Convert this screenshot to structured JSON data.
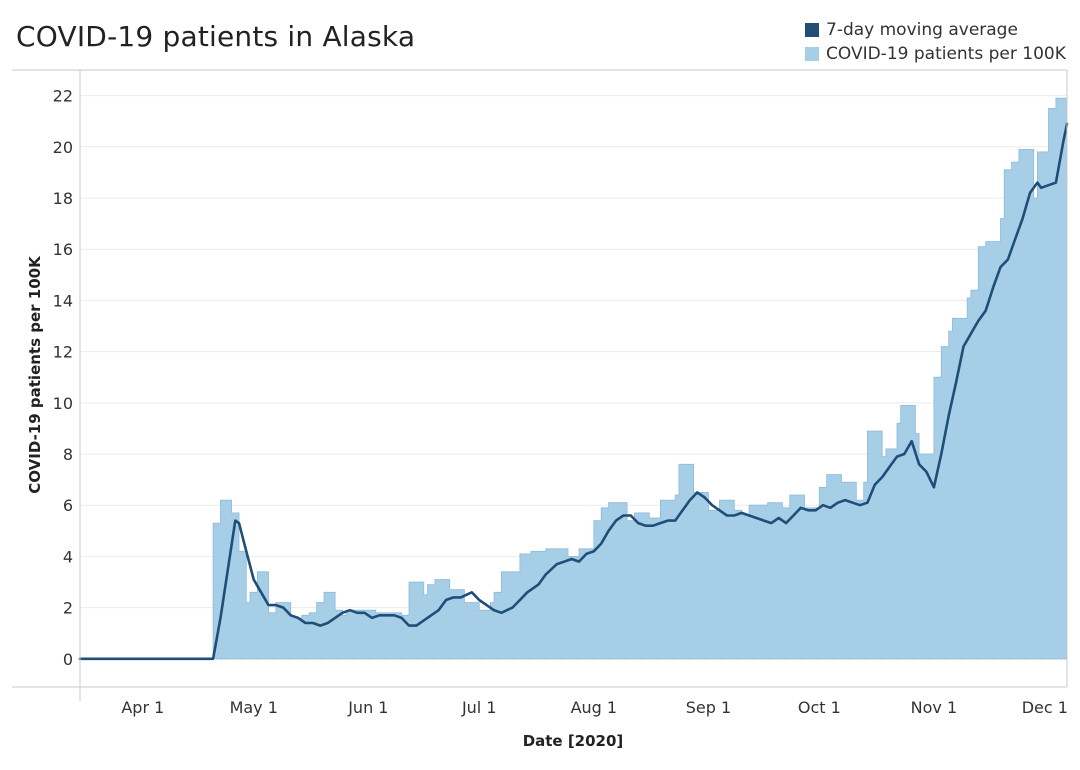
{
  "chart_data": {
    "type": "area",
    "title": "COVID-19 patients in Alaska",
    "xlabel": "Date [2020]",
    "ylabel": "COVID-19 patients per 100K",
    "x_range": [
      "2020-03-15",
      "2020-12-07"
    ],
    "ylim": [
      -1.1,
      23.0
    ],
    "y_ticks": [
      0,
      2,
      4,
      6,
      8,
      10,
      12,
      14,
      16,
      18,
      20,
      22
    ],
    "x_ticks": [
      {
        "date": "2020-04-01",
        "label": "Apr 1"
      },
      {
        "date": "2020-05-01",
        "label": "May 1"
      },
      {
        "date": "2020-06-01",
        "label": "Jun 1"
      },
      {
        "date": "2020-07-01",
        "label": "Jul 1"
      },
      {
        "date": "2020-08-01",
        "label": "Aug 1"
      },
      {
        "date": "2020-09-01",
        "label": "Sep 1"
      },
      {
        "date": "2020-10-01",
        "label": "Oct 1"
      },
      {
        "date": "2020-11-01",
        "label": "Nov 1"
      },
      {
        "date": "2020-12-01",
        "label": "Dec 1"
      }
    ],
    "grid": true,
    "legend_position": "top-right",
    "series": [
      {
        "name": "7-day moving average",
        "style": "line",
        "color": "#1f4e79",
        "points": [
          [
            "2020-03-15",
            0
          ],
          [
            "2020-04-19",
            0
          ],
          [
            "2020-04-20",
            0
          ],
          [
            "2020-04-22",
            1.6
          ],
          [
            "2020-04-24",
            3.5
          ],
          [
            "2020-04-26",
            5.4
          ],
          [
            "2020-04-27",
            5.3
          ],
          [
            "2020-04-29",
            4.2
          ],
          [
            "2020-05-01",
            3.1
          ],
          [
            "2020-05-03",
            2.6
          ],
          [
            "2020-05-05",
            2.1
          ],
          [
            "2020-05-07",
            2.1
          ],
          [
            "2020-05-09",
            2.0
          ],
          [
            "2020-05-11",
            1.7
          ],
          [
            "2020-05-13",
            1.6
          ],
          [
            "2020-05-15",
            1.4
          ],
          [
            "2020-05-17",
            1.4
          ],
          [
            "2020-05-19",
            1.3
          ],
          [
            "2020-05-21",
            1.4
          ],
          [
            "2020-05-23",
            1.6
          ],
          [
            "2020-05-25",
            1.8
          ],
          [
            "2020-05-27",
            1.9
          ],
          [
            "2020-05-29",
            1.8
          ],
          [
            "2020-05-31",
            1.8
          ],
          [
            "2020-06-02",
            1.6
          ],
          [
            "2020-06-04",
            1.7
          ],
          [
            "2020-06-06",
            1.7
          ],
          [
            "2020-06-08",
            1.7
          ],
          [
            "2020-06-10",
            1.6
          ],
          [
            "2020-06-12",
            1.3
          ],
          [
            "2020-06-14",
            1.3
          ],
          [
            "2020-06-16",
            1.5
          ],
          [
            "2020-06-18",
            1.7
          ],
          [
            "2020-06-20",
            1.9
          ],
          [
            "2020-06-22",
            2.3
          ],
          [
            "2020-06-24",
            2.4
          ],
          [
            "2020-06-26",
            2.4
          ],
          [
            "2020-06-29",
            2.6
          ],
          [
            "2020-07-01",
            2.3
          ],
          [
            "2020-07-03",
            2.1
          ],
          [
            "2020-07-05",
            1.9
          ],
          [
            "2020-07-07",
            1.8
          ],
          [
            "2020-07-10",
            2.0
          ],
          [
            "2020-07-12",
            2.3
          ],
          [
            "2020-07-14",
            2.6
          ],
          [
            "2020-07-17",
            2.9
          ],
          [
            "2020-07-19",
            3.3
          ],
          [
            "2020-07-22",
            3.7
          ],
          [
            "2020-07-24",
            3.8
          ],
          [
            "2020-07-26",
            3.9
          ],
          [
            "2020-07-28",
            3.8
          ],
          [
            "2020-07-30",
            4.1
          ],
          [
            "2020-08-01",
            4.2
          ],
          [
            "2020-08-03",
            4.5
          ],
          [
            "2020-08-05",
            5.0
          ],
          [
            "2020-08-07",
            5.4
          ],
          [
            "2020-08-09",
            5.6
          ],
          [
            "2020-08-11",
            5.6
          ],
          [
            "2020-08-13",
            5.3
          ],
          [
            "2020-08-15",
            5.2
          ],
          [
            "2020-08-17",
            5.2
          ],
          [
            "2020-08-19",
            5.3
          ],
          [
            "2020-08-21",
            5.4
          ],
          [
            "2020-08-23",
            5.4
          ],
          [
            "2020-08-25",
            5.8
          ],
          [
            "2020-08-27",
            6.2
          ],
          [
            "2020-08-29",
            6.5
          ],
          [
            "2020-08-31",
            6.3
          ],
          [
            "2020-09-02",
            6.0
          ],
          [
            "2020-09-04",
            5.8
          ],
          [
            "2020-09-06",
            5.6
          ],
          [
            "2020-09-08",
            5.6
          ],
          [
            "2020-09-10",
            5.7
          ],
          [
            "2020-09-12",
            5.6
          ],
          [
            "2020-09-14",
            5.5
          ],
          [
            "2020-09-16",
            5.4
          ],
          [
            "2020-09-18",
            5.3
          ],
          [
            "2020-09-20",
            5.5
          ],
          [
            "2020-09-22",
            5.3
          ],
          [
            "2020-09-24",
            5.6
          ],
          [
            "2020-09-26",
            5.9
          ],
          [
            "2020-09-28",
            5.8
          ],
          [
            "2020-09-30",
            5.8
          ],
          [
            "2020-10-02",
            6.0
          ],
          [
            "2020-10-04",
            5.9
          ],
          [
            "2020-10-06",
            6.1
          ],
          [
            "2020-10-08",
            6.2
          ],
          [
            "2020-10-10",
            6.1
          ],
          [
            "2020-10-12",
            6.0
          ],
          [
            "2020-10-14",
            6.1
          ],
          [
            "2020-10-16",
            6.8
          ],
          [
            "2020-10-18",
            7.1
          ],
          [
            "2020-10-20",
            7.5
          ],
          [
            "2020-10-22",
            7.9
          ],
          [
            "2020-10-24",
            8.0
          ],
          [
            "2020-10-26",
            8.5
          ],
          [
            "2020-10-28",
            7.6
          ],
          [
            "2020-10-30",
            7.3
          ],
          [
            "2020-11-01",
            6.7
          ],
          [
            "2020-11-03",
            8.0
          ],
          [
            "2020-11-05",
            9.5
          ],
          [
            "2020-11-07",
            10.8
          ],
          [
            "2020-11-09",
            12.2
          ],
          [
            "2020-11-11",
            12.7
          ],
          [
            "2020-11-13",
            13.2
          ],
          [
            "2020-11-15",
            13.6
          ],
          [
            "2020-11-17",
            14.5
          ],
          [
            "2020-11-19",
            15.3
          ],
          [
            "2020-11-21",
            15.6
          ],
          [
            "2020-11-23",
            16.4
          ],
          [
            "2020-11-25",
            17.2
          ],
          [
            "2020-11-27",
            18.2
          ],
          [
            "2020-11-29",
            18.6
          ],
          [
            "2020-11-30",
            18.4
          ],
          [
            "2020-12-02",
            18.5
          ],
          [
            "2020-12-04",
            18.6
          ],
          [
            "2020-12-05",
            19.4
          ],
          [
            "2020-12-06",
            20.2
          ],
          [
            "2020-12-07",
            20.9
          ]
        ]
      },
      {
        "name": "COVID-19 patients per 100K",
        "style": "area",
        "color": "#a6cee6",
        "points": [
          [
            "2020-03-15",
            0
          ],
          [
            "2020-04-19",
            0
          ],
          [
            "2020-04-20",
            5.3
          ],
          [
            "2020-04-22",
            6.2
          ],
          [
            "2020-04-25",
            5.7
          ],
          [
            "2020-04-27",
            4.2
          ],
          [
            "2020-04-29",
            2.2
          ],
          [
            "2020-04-30",
            2.6
          ],
          [
            "2020-05-02",
            3.4
          ],
          [
            "2020-05-05",
            1.8
          ],
          [
            "2020-05-07",
            2.2
          ],
          [
            "2020-05-11",
            1.6
          ],
          [
            "2020-05-14",
            1.7
          ],
          [
            "2020-05-16",
            1.8
          ],
          [
            "2020-05-18",
            2.2
          ],
          [
            "2020-05-20",
            2.6
          ],
          [
            "2020-05-23",
            1.9
          ],
          [
            "2020-05-25",
            1.7
          ],
          [
            "2020-05-26",
            1.9
          ],
          [
            "2020-06-03",
            1.8
          ],
          [
            "2020-06-10",
            1.7
          ],
          [
            "2020-06-12",
            3.0
          ],
          [
            "2020-06-16",
            2.5
          ],
          [
            "2020-06-17",
            2.9
          ],
          [
            "2020-06-19",
            3.1
          ],
          [
            "2020-06-23",
            2.7
          ],
          [
            "2020-06-27",
            2.2
          ],
          [
            "2020-07-01",
            1.9
          ],
          [
            "2020-07-04",
            2.2
          ],
          [
            "2020-07-05",
            2.6
          ],
          [
            "2020-07-07",
            3.4
          ],
          [
            "2020-07-12",
            4.1
          ],
          [
            "2020-07-15",
            4.2
          ],
          [
            "2020-07-19",
            4.3
          ],
          [
            "2020-07-22",
            4.3
          ],
          [
            "2020-07-25",
            4.0
          ],
          [
            "2020-07-28",
            4.3
          ],
          [
            "2020-08-01",
            5.4
          ],
          [
            "2020-08-03",
            5.9
          ],
          [
            "2020-08-05",
            6.1
          ],
          [
            "2020-08-10",
            5.4
          ],
          [
            "2020-08-12",
            5.7
          ],
          [
            "2020-08-16",
            5.5
          ],
          [
            "2020-08-19",
            6.2
          ],
          [
            "2020-08-23",
            6.4
          ],
          [
            "2020-08-24",
            7.6
          ],
          [
            "2020-08-28",
            6.5
          ],
          [
            "2020-09-01",
            5.8
          ],
          [
            "2020-09-04",
            6.2
          ],
          [
            "2020-09-08",
            5.8
          ],
          [
            "2020-09-10",
            5.6
          ],
          [
            "2020-09-12",
            6.0
          ],
          [
            "2020-09-17",
            6.1
          ],
          [
            "2020-09-21",
            5.9
          ],
          [
            "2020-09-23",
            6.4
          ],
          [
            "2020-09-27",
            5.9
          ],
          [
            "2020-10-01",
            6.7
          ],
          [
            "2020-10-03",
            7.2
          ],
          [
            "2020-10-07",
            6.9
          ],
          [
            "2020-10-11",
            6.2
          ],
          [
            "2020-10-13",
            6.9
          ],
          [
            "2020-10-14",
            8.9
          ],
          [
            "2020-10-18",
            7.9
          ],
          [
            "2020-10-19",
            8.2
          ],
          [
            "2020-10-22",
            9.2
          ],
          [
            "2020-10-23",
            9.9
          ],
          [
            "2020-10-27",
            8.8
          ],
          [
            "2020-10-28",
            8.0
          ],
          [
            "2020-11-01",
            11.0
          ],
          [
            "2020-11-03",
            12.2
          ],
          [
            "2020-11-05",
            12.8
          ],
          [
            "2020-11-06",
            13.3
          ],
          [
            "2020-11-10",
            14.1
          ],
          [
            "2020-11-11",
            14.4
          ],
          [
            "2020-11-13",
            16.1
          ],
          [
            "2020-11-15",
            16.3
          ],
          [
            "2020-11-19",
            17.2
          ],
          [
            "2020-11-20",
            19.1
          ],
          [
            "2020-11-22",
            19.4
          ],
          [
            "2020-11-24",
            19.9
          ],
          [
            "2020-11-28",
            18.0
          ],
          [
            "2020-11-29",
            19.8
          ],
          [
            "2020-12-02",
            21.5
          ],
          [
            "2020-12-04",
            21.9
          ],
          [
            "2020-12-07",
            21.9
          ]
        ]
      }
    ]
  }
}
